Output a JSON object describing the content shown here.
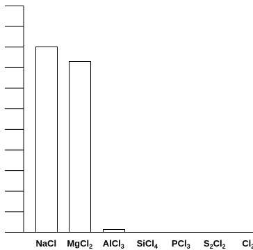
{
  "chart_data": {
    "type": "bar",
    "categories": [
      {
        "base": "NaCl",
        "parts": [
          [
            "NaCl",
            false
          ]
        ]
      },
      {
        "base": "MgCl2",
        "parts": [
          [
            "MgCl",
            false
          ],
          [
            "2",
            true
          ]
        ]
      },
      {
        "base": "AlCl3",
        "parts": [
          [
            "AlCl",
            false
          ],
          [
            "3",
            true
          ]
        ]
      },
      {
        "base": "SiCl4",
        "parts": [
          [
            "SiCl",
            false
          ],
          [
            "4",
            true
          ]
        ]
      },
      {
        "base": "PCl3",
        "parts": [
          [
            "PCl",
            false
          ],
          [
            "3",
            true
          ]
        ]
      },
      {
        "base": "S2Cl2",
        "parts": [
          [
            "S",
            false
          ],
          [
            "2",
            true
          ],
          [
            "Cl",
            false
          ],
          [
            "2",
            true
          ]
        ]
      },
      {
        "base": "Cl2",
        "parts": [
          [
            "Cl",
            false
          ],
          [
            "2",
            true
          ]
        ]
      }
    ],
    "values": [
      9.0,
      8.3,
      0.15,
      0,
      0,
      0,
      0
    ],
    "ylim": [
      0,
      11
    ],
    "ytick_count": 12,
    "tick_labels_shown": false,
    "grid": false,
    "bar_fill": "#ffffff",
    "bar_stroke": "#000000"
  }
}
